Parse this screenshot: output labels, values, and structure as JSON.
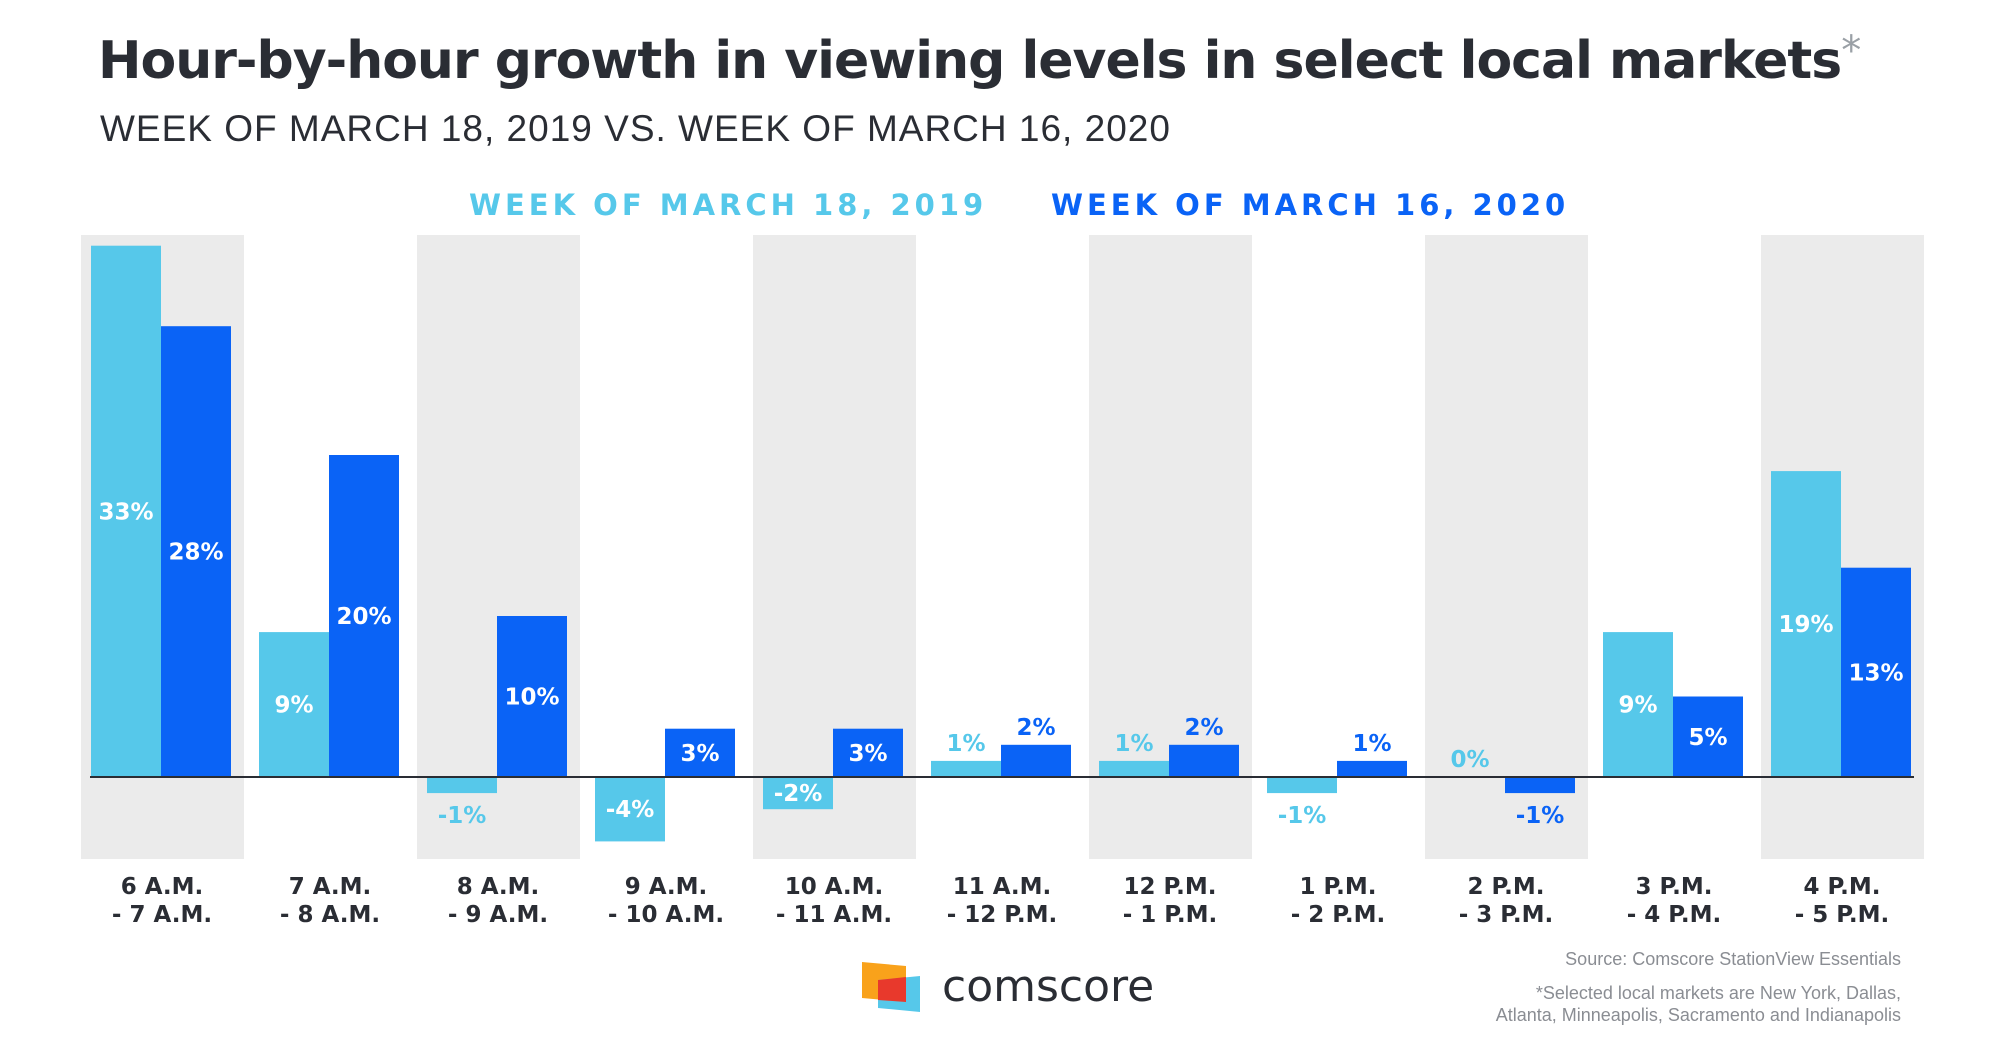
{
  "chart_data": {
    "type": "bar",
    "title": "Hour-by-hour growth in viewing levels in select local markets",
    "title_mark": "*",
    "subtitle": "WEEK OF MARCH 18, 2019 VS. WEEK OF MARCH 16, 2020",
    "categories": [
      [
        "6 A.M.",
        "- 7 A.M."
      ],
      [
        "7 A.M.",
        "- 8 A.M."
      ],
      [
        "8 A.M.",
        "- 9 A.M."
      ],
      [
        "9 A.M.",
        "- 10 A.M."
      ],
      [
        "10 A.M.",
        "- 11 A.M."
      ],
      [
        "11 A.M.",
        "- 12 P.M."
      ],
      [
        "12 P.M.",
        "- 1 P.M."
      ],
      [
        "1 P.M.",
        "- 2 P.M."
      ],
      [
        "2 P.M.",
        "- 3 P.M."
      ],
      [
        "3 P.M.",
        "- 4 P.M."
      ],
      [
        "4 P.M.",
        "- 5 P.M."
      ]
    ],
    "series": [
      {
        "name": "WEEK OF MARCH 18, 2019",
        "color": "#56c8ea",
        "values": [
          33,
          9,
          -1,
          -4,
          -2,
          1,
          1,
          -1,
          0,
          9,
          19
        ]
      },
      {
        "name": "WEEK OF MARCH 16, 2020",
        "color": "#0a63f6",
        "values": [
          28,
          20,
          10,
          3,
          3,
          2,
          2,
          1,
          -1,
          5,
          13
        ]
      }
    ],
    "value_suffix": "%",
    "legend_position": "top-center",
    "grid": false,
    "ylim": [
      -5,
      34
    ],
    "band_color": "#ebebeb"
  },
  "footer": {
    "brand": "comscore",
    "source": "Source: Comscore StationView Essentials",
    "footnote_lines": [
      "*Selected local markets are New York, Dallas,",
      "Atlanta, Minneapolis, Sacramento and Indianapolis"
    ]
  }
}
